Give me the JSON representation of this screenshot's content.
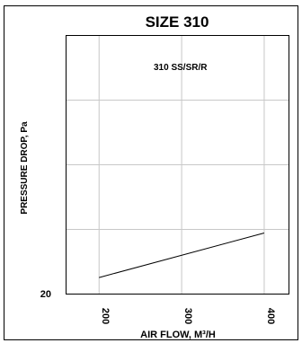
{
  "chart_data": {
    "type": "line",
    "title": "SIZE 310",
    "xlabel": "AIR FLOW, M³/H",
    "ylabel": "PRESSURE DROP, Pa",
    "xlim": [
      160,
      430
    ],
    "x_ticks": [
      200,
      300,
      400
    ],
    "x_tick_labels": [
      "200",
      "300",
      "400"
    ],
    "y_ticks": [
      20
    ],
    "y_tick_labels": [
      "20"
    ],
    "y_scale": "log",
    "grid": true,
    "series": [
      {
        "name": "310 SS/SR/R",
        "x": [
          200,
          400
        ],
        "y": [
          36,
          176
        ]
      }
    ],
    "line_color": "#000000",
    "grid_color": "#c8c8c8"
  }
}
